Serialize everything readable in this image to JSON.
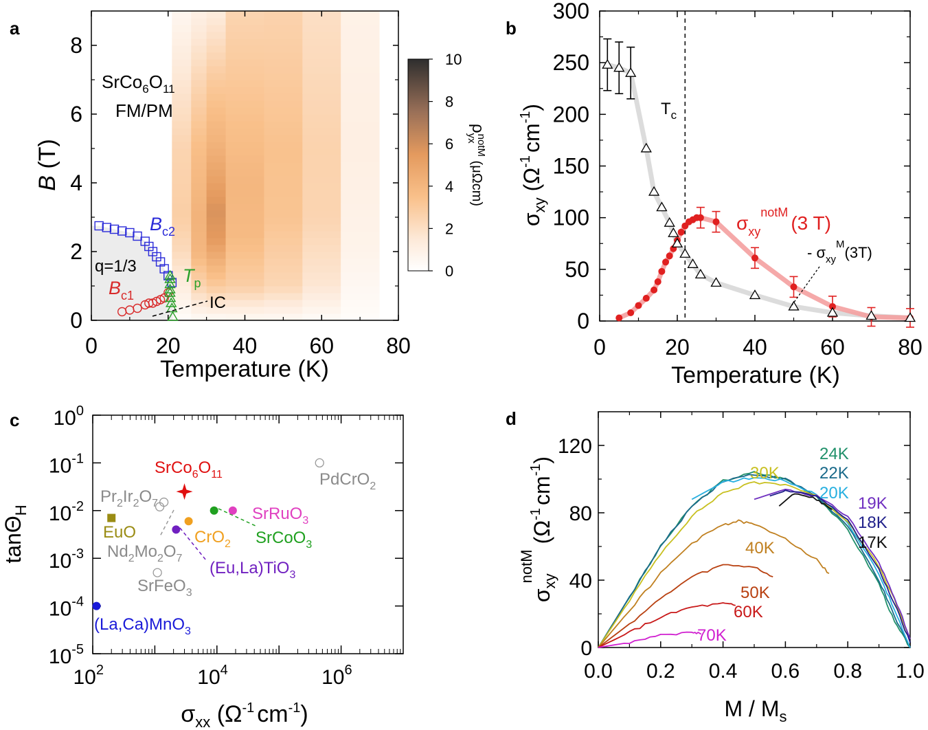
{
  "chart_data": [
    {
      "panel_label": "a",
      "type": "heatmap",
      "xlabel": "Temperature (K)",
      "ylabel_main": "B",
      "ylabel_unit": " (T)",
      "xlim": [
        0,
        80
      ],
      "ylim": [
        0,
        9
      ],
      "xticks": [
        "0",
        "20",
        "40",
        "60",
        "80"
      ],
      "yticks": [
        "0",
        "2",
        "4",
        "6",
        "8"
      ],
      "compound": {
        "base": "SrCo",
        "sub1": "6",
        "mid": "O",
        "sub2": "11"
      },
      "phase_label": "FM/PM",
      "colorbar": {
        "ticks": [
          "0",
          "2",
          "4",
          "6",
          "8",
          "10"
        ],
        "range": [
          0,
          10
        ],
        "label_main": "ρ",
        "label_sub": "yx",
        "label_sup": "notM",
        "label_unit": " (μΩcm)"
      },
      "heat_columns": [
        {
          "t0": 21,
          "t1": 26,
          "profile": [
            {
              "b": 0,
              "v": 0.2
            },
            {
              "b": 1,
              "v": 1.2
            },
            {
              "b": 2,
              "v": 2.2
            },
            {
              "b": 3,
              "v": 2.8
            },
            {
              "b": 5,
              "v": 2.5
            },
            {
              "b": 7,
              "v": 1.6
            },
            {
              "b": 9,
              "v": 0.6
            }
          ]
        },
        {
          "t0": 26,
          "t1": 30,
          "profile": [
            {
              "b": 0,
              "v": 0.3
            },
            {
              "b": 1,
              "v": 2.5
            },
            {
              "b": 2,
              "v": 4.0
            },
            {
              "b": 3,
              "v": 4.2
            },
            {
              "b": 5,
              "v": 3.6
            },
            {
              "b": 7,
              "v": 2.4
            },
            {
              "b": 9,
              "v": 1.0
            }
          ]
        },
        {
          "t0": 30,
          "t1": 35,
          "profile": [
            {
              "b": 0,
              "v": 0.3
            },
            {
              "b": 1,
              "v": 3.0
            },
            {
              "b": 2.4,
              "v": 5.5
            },
            {
              "b": 3.2,
              "v": 5.8
            },
            {
              "b": 5,
              "v": 4.3
            },
            {
              "b": 7,
              "v": 3.0
            },
            {
              "b": 9,
              "v": 1.3
            }
          ]
        },
        {
          "t0": 35,
          "t1": 45,
          "profile": [
            {
              "b": 0,
              "v": 0.4
            },
            {
              "b": 1,
              "v": 2.8
            },
            {
              "b": 2.5,
              "v": 3.8
            },
            {
              "b": 4,
              "v": 4.0
            },
            {
              "b": 6,
              "v": 3.4
            },
            {
              "b": 8,
              "v": 2.8
            },
            {
              "b": 9,
              "v": 2.5
            }
          ]
        },
        {
          "t0": 45,
          "t1": 55,
          "profile": [
            {
              "b": 0,
              "v": 0.4
            },
            {
              "b": 1,
              "v": 2.4
            },
            {
              "b": 3,
              "v": 3.3
            },
            {
              "b": 5,
              "v": 3.4
            },
            {
              "b": 7,
              "v": 3.0
            },
            {
              "b": 9,
              "v": 2.6
            }
          ]
        },
        {
          "t0": 55,
          "t1": 65,
          "profile": [
            {
              "b": 0,
              "v": 0.3
            },
            {
              "b": 1,
              "v": 1.6
            },
            {
              "b": 3,
              "v": 2.5
            },
            {
              "b": 5,
              "v": 2.6
            },
            {
              "b": 7,
              "v": 2.3
            },
            {
              "b": 9,
              "v": 2.0
            }
          ]
        },
        {
          "t0": 65,
          "t1": 75,
          "profile": [
            {
              "b": 0,
              "v": 0.2
            },
            {
              "b": 2,
              "v": 0.8
            },
            {
              "b": 5,
              "v": 1.1
            },
            {
              "b": 9,
              "v": 0.9
            }
          ]
        }
      ],
      "series": [
        {
          "name_main": "B",
          "name_sub": "c2",
          "color": "#2a2ad8",
          "marker": "square",
          "x": [
            2,
            4,
            6,
            8,
            10,
            12,
            14,
            15,
            16,
            17,
            18,
            19,
            20,
            21
          ],
          "y": [
            2.75,
            2.7,
            2.65,
            2.6,
            2.55,
            2.45,
            2.3,
            2.15,
            2.0,
            1.85,
            1.7,
            1.5,
            1.3,
            1.1
          ]
        },
        {
          "name_main": "B",
          "name_sub": "c1",
          "color": "#d82a2a",
          "marker": "circle",
          "x": [
            8,
            10,
            12,
            14,
            15,
            16,
            17,
            18,
            19,
            20
          ],
          "y": [
            0.25,
            0.3,
            0.35,
            0.45,
            0.5,
            0.5,
            0.55,
            0.6,
            0.65,
            0.8
          ]
        },
        {
          "name_main": "T",
          "name_sub": "p",
          "color": "#2aa02a",
          "marker": "triangle",
          "x": [
            20.5,
            20.5,
            20.5,
            20.5,
            20.5,
            20.6,
            20.8,
            21,
            21.2
          ],
          "y": [
            1.3,
            1.2,
            1.05,
            0.9,
            0.8,
            0.65,
            0.5,
            0.35,
            0.1
          ]
        }
      ],
      "phase_region_label": "q=1/3",
      "ic_label": "IC"
    },
    {
      "panel_label": "b",
      "type": "scatter",
      "xlabel": "Temperature (K)",
      "ylabel_main": "σ",
      "ylabel_sub": "xy",
      "ylabel_unit": " (Ω",
      "ylabel_unit2": "cm",
      "ylabel_close": ")",
      "xlim": [
        0,
        80
      ],
      "ylim": [
        0,
        300
      ],
      "xticks": [
        "0",
        "20",
        "40",
        "60",
        "80"
      ],
      "yticks": [
        "0",
        "50",
        "100",
        "150",
        "200",
        "250",
        "300"
      ],
      "tc_label": "T",
      "tc_sub": "c",
      "tc_value": 22,
      "series": [
        {
          "name_main": "σ",
          "name_sub": "xy",
          "name_sup": "notM",
          "name_suffix": "(3 T)",
          "color": "#e02020",
          "marker": "circle",
          "x": [
            5,
            8,
            10,
            12,
            14,
            15,
            16,
            17,
            18,
            19,
            20,
            21,
            22,
            23,
            24,
            25,
            26,
            30,
            40,
            50,
            60,
            70,
            80
          ],
          "y": [
            3,
            8,
            15,
            22,
            30,
            38,
            48,
            57,
            63,
            70,
            78,
            86,
            92,
            96,
            98,
            100,
            100,
            96,
            61,
            33,
            14,
            4,
            3
          ],
          "err": [
            0,
            0,
            0,
            0,
            0,
            0,
            0,
            0,
            0,
            0,
            0,
            0,
            0,
            0,
            0,
            0,
            10,
            10,
            10,
            10,
            10,
            9,
            9
          ]
        },
        {
          "name_main": "- σ",
          "name_sub": "xy",
          "name_sup": "M",
          "name_suffix": "(3T)",
          "color": "#000000",
          "marker": "triangle",
          "x": [
            2,
            5,
            8,
            12,
            14,
            16,
            18,
            19,
            20,
            22,
            24,
            26,
            30,
            40,
            50,
            60,
            70,
            80
          ],
          "y": [
            248,
            245,
            240,
            167,
            125,
            110,
            95,
            85,
            75,
            65,
            55,
            45,
            37,
            25,
            14,
            8,
            5,
            3
          ],
          "err": [
            25,
            25,
            25,
            0,
            0,
            0,
            0,
            0,
            0,
            0,
            0,
            0,
            0,
            0,
            0,
            0,
            0,
            0
          ]
        }
      ]
    },
    {
      "panel_label": "c",
      "type": "scatter",
      "xlabel_main": "σ",
      "xlabel_sub": "xx",
      "xlabel_unit": " (Ω",
      "xlabel_unit2": "cm",
      "xlabel_close": ")",
      "ylabel_main": "tanΘ",
      "ylabel_sub": "H",
      "xscale": "log",
      "yscale": "log",
      "xlim": [
        100,
        10000000
      ],
      "ylim": [
        1e-05,
        1
      ],
      "xticks": [
        {
          "base": "10",
          "exp": "2"
        },
        {
          "base": "10",
          "exp": "4"
        },
        {
          "base": "10",
          "exp": "6"
        }
      ],
      "yticks": [
        {
          "base": "10",
          "exp": "0"
        },
        {
          "base": "10",
          "exp": "-1"
        },
        {
          "base": "10",
          "exp": "-2"
        },
        {
          "base": "10",
          "exp": "-3"
        },
        {
          "base": "10",
          "exp": "-4"
        },
        {
          "base": "10",
          "exp": "-5"
        }
      ],
      "points": [
        {
          "label_parts": [
            [
              "SrCo",
              ""
            ],
            [
              "6",
              "sub"
            ],
            [
              "O",
              ""
            ],
            [
              "11",
              "sub"
            ]
          ],
          "x": 3000,
          "y": 0.025,
          "color": "#e01010",
          "marker": "star"
        },
        {
          "label_parts": [
            [
              "PdCrO",
              ""
            ],
            [
              "2",
              "sub"
            ]
          ],
          "x": 450000,
          "y": 0.1,
          "color": "#999999",
          "marker": "open-circle"
        },
        {
          "label_parts": [
            [
              "Pr",
              ""
            ],
            [
              "2",
              "sub"
            ],
            [
              "Ir",
              ""
            ],
            [
              "2",
              "sub"
            ],
            [
              "O",
              ""
            ],
            [
              "7",
              "sub"
            ]
          ],
          "x": 1400,
          "y": 0.015,
          "color": "#999999",
          "marker": "open-circle"
        },
        {
          "label_parts": [
            [
              "Nd",
              ""
            ],
            [
              "2",
              "sub"
            ],
            [
              "Mo",
              ""
            ],
            [
              "2",
              "sub"
            ],
            [
              "O",
              ""
            ],
            [
              "7",
              "sub"
            ]
          ],
          "x": 1200,
          "y": 0.012,
          "color": "#999999",
          "marker": "open-circle"
        },
        {
          "label_parts": [
            [
              "EuO",
              ""
            ]
          ],
          "x": 200,
          "y": 0.007,
          "color": "#9a8c14",
          "marker": "square"
        },
        {
          "label_parts": [
            [
              "CrO",
              ""
            ],
            [
              "2",
              "sub"
            ]
          ],
          "x": 3500,
          "y": 0.006,
          "color": "#f0a020",
          "marker": "circle"
        },
        {
          "label_parts": [
            [
              "SrRuO",
              ""
            ],
            [
              "3",
              "sub"
            ]
          ],
          "x": 18000,
          "y": 0.01,
          "color": "#e040c0",
          "marker": "circle"
        },
        {
          "label_parts": [
            [
              "SrCoO",
              ""
            ],
            [
              "3",
              "sub"
            ]
          ],
          "x": 9000,
          "y": 0.01,
          "color": "#20a020",
          "marker": "circle"
        },
        {
          "label_parts": [
            [
              "(Eu,La)TiO",
              ""
            ],
            [
              "3",
              "sub"
            ]
          ],
          "x": 2200,
          "y": 0.004,
          "color": "#7020c0",
          "marker": "circle"
        },
        {
          "label_parts": [
            [
              "SrFeO",
              ""
            ],
            [
              "3",
              "sub"
            ]
          ],
          "x": 1100,
          "y": 0.0005,
          "color": "#999999",
          "marker": "open-circle"
        },
        {
          "label_parts": [
            [
              "(La,Ca)MnO",
              ""
            ],
            [
              "3",
              "sub"
            ]
          ],
          "x": 115,
          "y": 0.0001,
          "color": "#1a1ad8",
          "marker": "circle"
        }
      ]
    },
    {
      "panel_label": "d",
      "type": "line",
      "xlabel_main": "M / M",
      "xlabel_sub": "s",
      "ylabel_main": "σ",
      "ylabel_sub": "xy",
      "ylabel_sup": "notM",
      "ylabel_unit": "(Ω",
      "ylabel_unit2": "cm",
      "ylabel_close": ")",
      "xlim": [
        0,
        1
      ],
      "ylim": [
        0,
        140
      ],
      "xticks": [
        "0.0",
        "0.2",
        "0.4",
        "0.6",
        "0.8",
        "1.0"
      ],
      "yticks": [
        "0",
        "40",
        "80",
        "120"
      ],
      "series": [
        {
          "name": "24K",
          "color": "#20906a",
          "x": [
            0,
            0.1,
            0.2,
            0.3,
            0.4,
            0.5,
            0.6,
            0.7,
            0.8,
            0.9,
            0.95,
            1.0
          ],
          "y": [
            0,
            30,
            60,
            84,
            99,
            104,
            100,
            90,
            70,
            38,
            15,
            0
          ]
        },
        {
          "name": "22K",
          "color": "#1a6a8a",
          "x": [
            0,
            0.1,
            0.2,
            0.3,
            0.4,
            0.5,
            0.6,
            0.7,
            0.8,
            0.9,
            0.95,
            1.0
          ],
          "y": [
            0,
            30,
            60,
            84,
            99,
            103,
            100,
            90,
            72,
            40,
            18,
            0
          ]
        },
        {
          "name": "20K",
          "color": "#28b0e0",
          "x": [
            0.3,
            0.4,
            0.5,
            0.6,
            0.7,
            0.8,
            0.9,
            0.95,
            1.0
          ],
          "y": [
            88,
            98,
            101,
            99,
            91,
            74,
            44,
            22,
            0
          ]
        },
        {
          "name": "30K",
          "color": "#c8c020",
          "x": [
            0,
            0.1,
            0.2,
            0.3,
            0.4,
            0.5,
            0.6,
            0.7,
            0.8,
            0.9,
            0.95,
            1.0
          ],
          "y": [
            0,
            28,
            56,
            78,
            92,
            98,
            97,
            90,
            75,
            48,
            28,
            5
          ]
        },
        {
          "name": "19K",
          "color": "#7030c0",
          "x": [
            0.5,
            0.6,
            0.7,
            0.8,
            0.9,
            0.95,
            1.0
          ],
          "y": [
            88,
            94,
            90,
            78,
            50,
            30,
            5
          ]
        },
        {
          "name": "18K",
          "color": "#20208a",
          "x": [
            0.55,
            0.6,
            0.7,
            0.8,
            0.9,
            0.95,
            1.0
          ],
          "y": [
            90,
            93,
            90,
            76,
            46,
            26,
            3
          ]
        },
        {
          "name": "17K",
          "color": "#101010",
          "x": [
            0.58,
            0.63,
            0.7,
            0.75
          ],
          "y": [
            84,
            92,
            88,
            82
          ]
        },
        {
          "name": "40K",
          "color": "#c08020",
          "x": [
            0,
            0.1,
            0.2,
            0.3,
            0.4,
            0.45,
            0.5,
            0.6,
            0.7,
            0.74
          ],
          "y": [
            0,
            22,
            44,
            62,
            73,
            75,
            73,
            65,
            52,
            44
          ]
        },
        {
          "name": "50K",
          "color": "#b84010",
          "x": [
            0,
            0.1,
            0.2,
            0.3,
            0.4,
            0.5,
            0.56
          ],
          "y": [
            0,
            14,
            29,
            42,
            49,
            48,
            42
          ]
        },
        {
          "name": "60K",
          "color": "#c81818",
          "x": [
            0,
            0.1,
            0.2,
            0.3,
            0.4,
            0.44
          ],
          "y": [
            0,
            9,
            18,
            24,
            26,
            25
          ]
        },
        {
          "name": "70K",
          "color": "#d020d0",
          "x": [
            0,
            0.1,
            0.2,
            0.3,
            0.33
          ],
          "y": [
            0,
            3,
            7,
            9,
            8
          ]
        }
      ]
    }
  ]
}
